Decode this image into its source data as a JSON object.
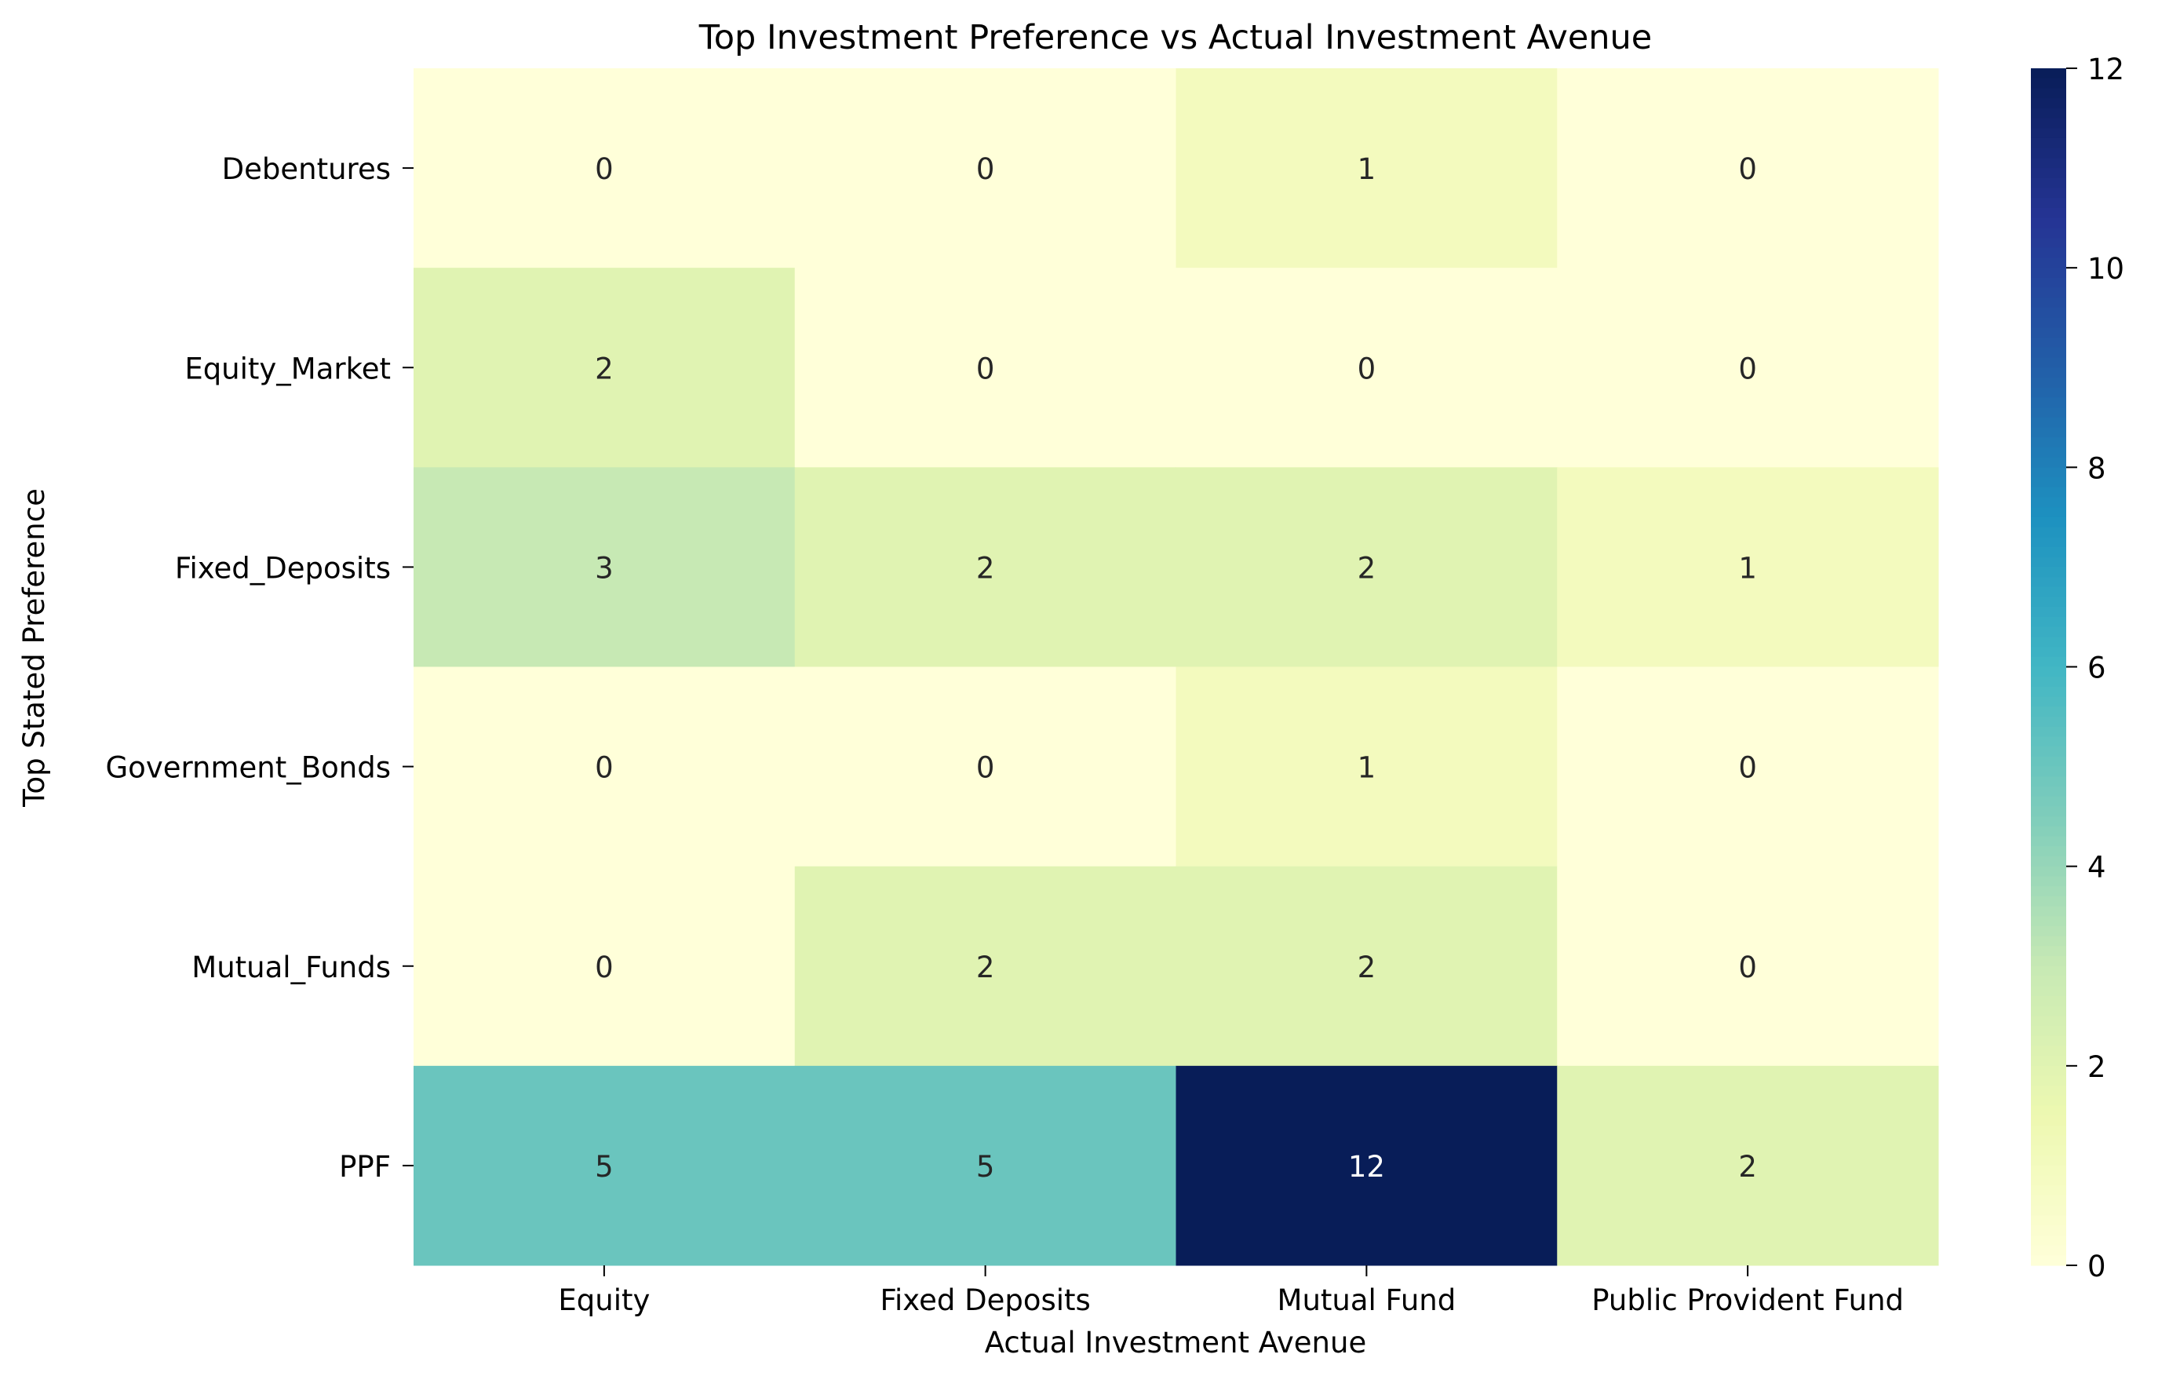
{
  "chart_data": {
    "type": "heatmap",
    "title": "Top Investment Preference vs Actual Investment Avenue",
    "xlabel": "Actual Investment Avenue",
    "ylabel": "Top Stated Preference",
    "x_categories": [
      "Equity",
      "Fixed Deposits",
      "Mutual Fund",
      "Public Provident Fund"
    ],
    "y_categories": [
      "Debentures",
      "Equity_Market",
      "Fixed_Deposits",
      "Government_Bonds",
      "Mutual_Funds",
      "PPF"
    ],
    "values": [
      [
        0,
        0,
        1,
        0
      ],
      [
        2,
        0,
        0,
        0
      ],
      [
        3,
        2,
        2,
        1
      ],
      [
        0,
        0,
        1,
        0
      ],
      [
        0,
        2,
        2,
        0
      ],
      [
        5,
        5,
        12,
        2
      ]
    ],
    "colorbar": {
      "colormap": "YlGnBu",
      "range": [
        0,
        12
      ],
      "ticks": [
        0,
        2,
        4,
        6,
        8,
        10,
        12
      ]
    },
    "annotations": true,
    "grid": false
  }
}
